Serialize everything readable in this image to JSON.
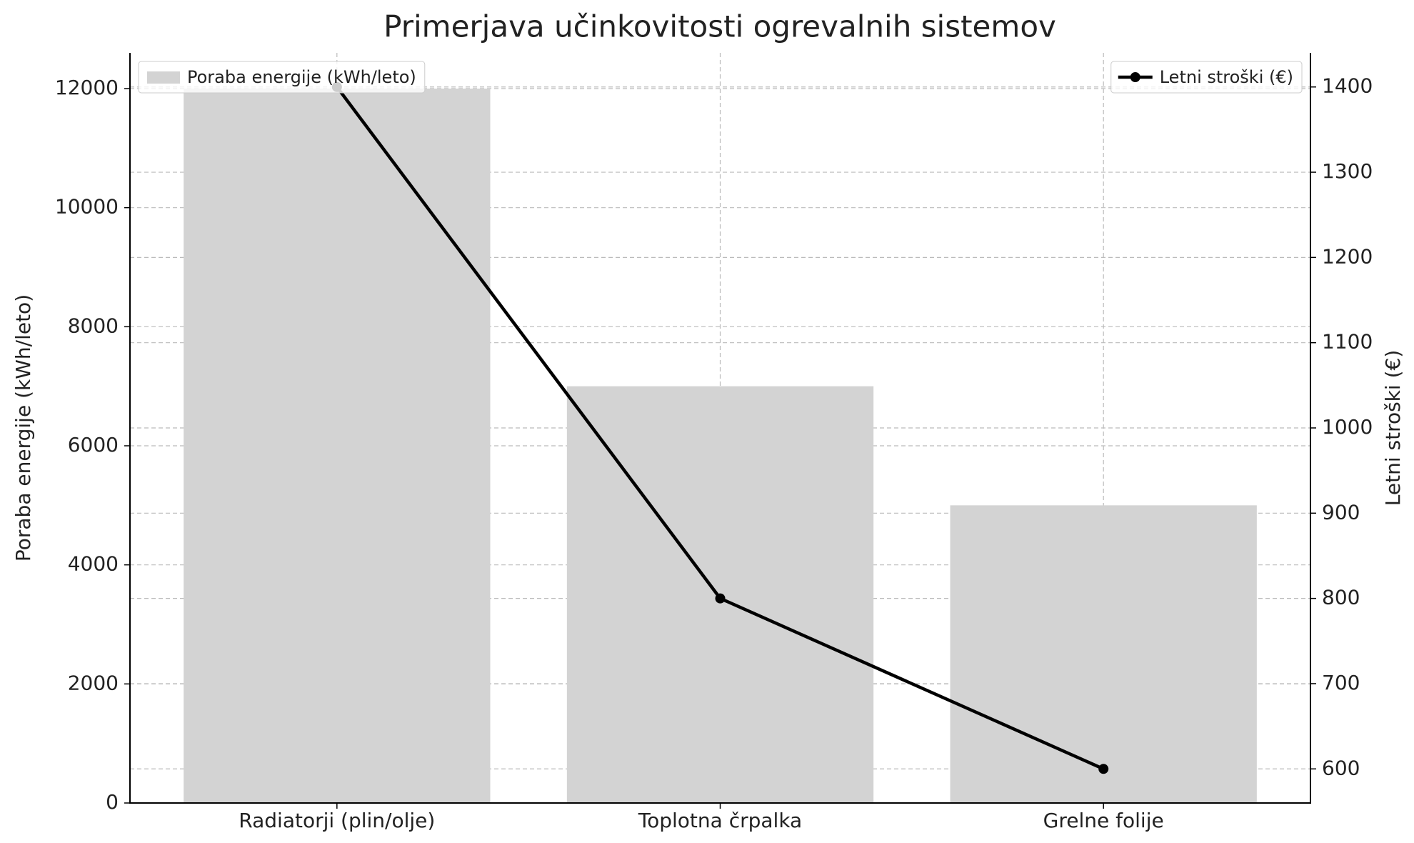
{
  "chart_data": {
    "type": "combo",
    "title": "Primerjava učinkovitosti ogrevalnih sistemov",
    "categories": [
      "Radiatorji (plin/olje)",
      "Toplotna črpalka",
      "Grelne folije"
    ],
    "series": [
      {
        "name": "Poraba energije (kWh/leto)",
        "color": "#d3d3d3",
        "values": [
          12000,
          7000,
          5000
        ],
        "mark": "bar"
      },
      {
        "name": "Letni stroški (€)",
        "color": "#000000",
        "values": [
          1400,
          800,
          600
        ],
        "mark": "line",
        "axis": "y2"
      }
    ],
    "ylabel": "Poraba energije (kWh/leto)",
    "y2label": "Letni stroški (€)",
    "ylim": [
      0,
      12600
    ],
    "yticks": [
      0,
      2000,
      4000,
      6000,
      8000,
      10000,
      12000
    ],
    "y2lim": [
      560,
      1440
    ],
    "y2ticks": [
      600,
      700,
      800,
      900,
      1000,
      1100,
      1200,
      1300,
      1400
    ],
    "grid": true,
    "legend": "upper left",
    "legend2": "upper right"
  }
}
